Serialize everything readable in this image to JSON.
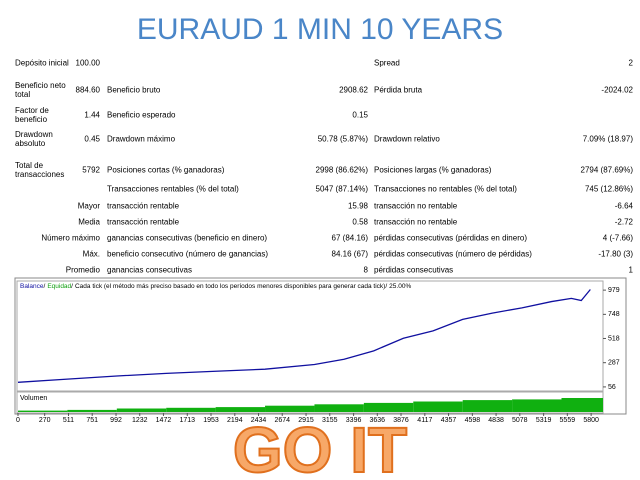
{
  "header": {
    "title": "EURAUD 1 MIN 10 YEARS"
  },
  "stats": [
    {
      "name": "Depósito inicial",
      "value": "100.00",
      "col3_name": "Spread",
      "col3_value": "2"
    },
    {
      "name": "Beneficio neto total",
      "value": "884.60",
      "col2_name": "Beneficio bruto",
      "col2_value": "2908.62",
      "col3_name": "Pérdida bruta",
      "col3_value": "-2024.02"
    },
    {
      "name": "Factor de beneficio",
      "value": "1.44",
      "col2_name": "Beneficio esperado",
      "col2_value": "0.15"
    },
    {
      "name": "Drawdown absoluto",
      "value": "0.45",
      "col2_name": "Drawdown máximo",
      "col2_value": "50.78 (5.87%)",
      "col3_name": "Drawdown relativo",
      "col3_value": "7.09% (18.97)"
    },
    {
      "name": "Total de transacciones",
      "value": "5792",
      "col2_name": "Posiciones cortas (% ganadoras)",
      "col2_value": "2998 (86.62%)",
      "col3_name": "Posiciones largas (% ganadoras)",
      "col3_value": "2794 (87.69%)"
    },
    {
      "col2_name": "Transacciones rentables (% del total)",
      "col2_value": "5047 (87.14%)",
      "col3_name": "Transacciones no rentables (% del total)",
      "col3_value": "745 (12.86%)"
    },
    {
      "name": "Mayor",
      "col2_name": "transacción rentable",
      "col2_value": "15.98",
      "col3_name": "transacción no rentable",
      "col3_value": "-6.64"
    },
    {
      "name": "Media",
      "col2_name": "transacción rentable",
      "col2_value": "0.58",
      "col3_name": "transacción no rentable",
      "col3_value": "-2.72"
    },
    {
      "name": "Número máximo",
      "col2_name": "ganancias consecutivas (beneficio en dinero)",
      "col2_value": "67 (84.16)",
      "col3_name": "pérdidas consecutivas (pérdidas en dinero)",
      "col3_value": "4 (-7.66)"
    },
    {
      "name": "Máx.",
      "col2_name": "beneficio consecutivo (número de ganancias)",
      "col2_value": "84.16 (67)",
      "col3_name": "pérdidas consecutivas (número de pérdidas)",
      "col3_value": "-17.80 (3)"
    },
    {
      "name": "Promedio",
      "col2_name": "ganancias consecutivas",
      "col2_value": "8",
      "col3_name": "pérdidas consecutivas",
      "col3_value": "1"
    }
  ],
  "chart_data": {
    "type": "line",
    "legend": {
      "items": [
        {
          "name": "Balance",
          "color": "#1010a0"
        },
        {
          "name": "Equidad",
          "color": "#10a010"
        },
        {
          "name": "Cada tick (el método más preciso basado en todo los períodos menores disponibles para generar cada tick)",
          "color": "#000000"
        },
        {
          "name": "25.00%",
          "color": "#000000"
        }
      ],
      "separator": "/"
    },
    "x": [
      0,
      500,
      1000,
      1500,
      2000,
      2500,
      3000,
      3300,
      3600,
      3900,
      4200,
      4500,
      4800,
      5100,
      5400,
      5600,
      5700,
      5792
    ],
    "series": [
      {
        "name": "Balance",
        "color": "#1010a0",
        "values": [
          100,
          130,
          160,
          185,
          205,
          225,
          270,
          320,
          400,
          520,
          590,
          700,
          760,
          810,
          870,
          900,
          880,
          985
        ]
      }
    ],
    "xlim": [
      0,
      5920
    ],
    "xticks": [
      0,
      270,
      511,
      751,
      992,
      1232,
      1472,
      1713,
      1953,
      2194,
      2434,
      2674,
      2915,
      3155,
      3396,
      3636,
      3876,
      4117,
      4357,
      4598,
      4838,
      5078,
      5319,
      5559,
      5800
    ],
    "ylim": [
      17,
      1066
    ],
    "yticks": [
      56,
      287,
      518,
      748,
      979
    ],
    "volume": {
      "label": "Volumen",
      "color": "#10b010",
      "x": [
        0,
        500,
        1000,
        1500,
        2000,
        2500,
        3000,
        3500,
        4000,
        4500,
        5000,
        5500
      ],
      "values": [
        1,
        1.5,
        2.5,
        3,
        3.5,
        4.5,
        5.5,
        6.5,
        7.5,
        8.5,
        9,
        10
      ],
      "ylim": [
        0,
        10
      ]
    }
  },
  "footer": {
    "text": "GO IT"
  }
}
